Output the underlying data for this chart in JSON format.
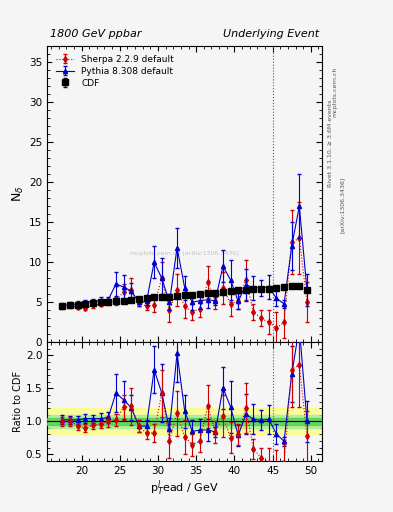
{
  "title_left": "1800 GeV ppbar",
  "title_right": "Underlying Event",
  "ylabel_main": "N$_{\\delta}$",
  "ylabel_ratio": "Ratio to CDF",
  "xlabel": "p$_T^{l}$ead / GeV",
  "right_label1": "Rivet 3.1.10, ≥ 3.6M events",
  "right_label2": "[arXiv:1306.3436]",
  "right_label3": "mcplots.cern.ch",
  "watermark": "mcplots.cern.ch [arXiv:1306.3436]",
  "xlim": [
    15.5,
    51.5
  ],
  "ylim_main": [
    0,
    37
  ],
  "ylim_ratio": [
    0.4,
    2.2
  ],
  "vline_x": 45.0,
  "cdf_x": [
    17.5,
    18.5,
    19.5,
    20.5,
    21.5,
    22.5,
    23.5,
    24.5,
    25.5,
    26.5,
    27.5,
    28.5,
    29.5,
    30.5,
    31.5,
    32.5,
    33.5,
    34.5,
    35.5,
    36.5,
    37.5,
    38.5,
    39.5,
    40.5,
    41.5,
    42.5,
    43.5,
    44.5,
    45.5,
    46.5,
    47.5,
    48.5,
    49.5
  ],
  "cdf_y": [
    4.5,
    4.6,
    4.7,
    4.8,
    4.9,
    5.0,
    5.0,
    5.1,
    5.2,
    5.3,
    5.4,
    5.5,
    5.6,
    5.6,
    5.7,
    5.8,
    5.9,
    5.9,
    6.0,
    6.1,
    6.2,
    6.3,
    6.4,
    6.5,
    6.5,
    6.6,
    6.7,
    6.7,
    6.8,
    6.9,
    7.0,
    7.0,
    6.5
  ],
  "cdf_yerr": [
    0.2,
    0.2,
    0.2,
    0.2,
    0.2,
    0.2,
    0.2,
    0.2,
    0.2,
    0.2,
    0.2,
    0.2,
    0.2,
    0.2,
    0.2,
    0.2,
    0.2,
    0.2,
    0.2,
    0.2,
    0.2,
    0.2,
    0.2,
    0.2,
    0.2,
    0.2,
    0.2,
    0.2,
    0.2,
    0.2,
    0.2,
    0.2,
    0.2
  ],
  "pythia_x": [
    17.5,
    18.5,
    19.5,
    20.5,
    21.5,
    22.5,
    23.5,
    24.5,
    25.5,
    26.5,
    27.5,
    28.5,
    29.5,
    30.5,
    31.5,
    32.5,
    33.5,
    34.5,
    35.5,
    36.5,
    37.5,
    38.5,
    39.5,
    40.5,
    41.5,
    42.5,
    43.5,
    44.5,
    45.5,
    46.5,
    47.5,
    48.5,
    49.5
  ],
  "pythia_y": [
    4.6,
    4.7,
    4.8,
    5.0,
    5.1,
    5.2,
    5.3,
    7.3,
    6.9,
    6.4,
    5.0,
    5.1,
    10.0,
    8.0,
    5.0,
    11.8,
    6.8,
    5.0,
    5.2,
    5.3,
    5.2,
    9.5,
    7.8,
    5.1,
    7.2,
    6.8,
    6.8,
    6.9,
    5.5,
    4.8,
    12.0,
    17.0,
    6.5
  ],
  "pythia_yerr": [
    0.3,
    0.3,
    0.3,
    0.3,
    0.3,
    0.4,
    0.4,
    1.5,
    1.5,
    1.0,
    0.5,
    0.5,
    2.0,
    2.5,
    1.0,
    2.5,
    1.5,
    1.0,
    1.0,
    1.0,
    0.5,
    2.0,
    2.5,
    1.0,
    2.0,
    1.5,
    1.0,
    1.5,
    1.0,
    0.5,
    3.0,
    4.0,
    2.0
  ],
  "sherpa_x": [
    17.5,
    18.5,
    19.5,
    20.5,
    21.5,
    22.5,
    23.5,
    24.5,
    25.5,
    26.5,
    27.5,
    28.5,
    29.5,
    30.5,
    31.5,
    32.5,
    33.5,
    34.5,
    35.5,
    36.5,
    37.5,
    38.5,
    39.5,
    40.5,
    41.5,
    42.5,
    43.5,
    44.5,
    45.5,
    46.5,
    47.5,
    48.5,
    49.5
  ],
  "sherpa_y": [
    4.5,
    4.6,
    4.4,
    4.3,
    4.6,
    4.8,
    5.0,
    5.2,
    6.3,
    6.5,
    5.0,
    4.5,
    4.6,
    8.0,
    4.0,
    6.5,
    4.5,
    3.8,
    4.2,
    7.5,
    5.2,
    6.8,
    4.8,
    5.2,
    7.8,
    3.8,
    3.0,
    2.5,
    1.8,
    2.5,
    12.5,
    13.0,
    5.0
  ],
  "sherpa_yerr": [
    0.3,
    0.3,
    0.3,
    0.3,
    0.3,
    0.3,
    0.4,
    0.5,
    1.0,
    1.5,
    0.5,
    0.5,
    0.8,
    2.0,
    1.5,
    2.0,
    1.5,
    1.0,
    1.0,
    2.0,
    1.0,
    2.0,
    1.5,
    1.0,
    2.5,
    1.0,
    1.0,
    1.5,
    2.0,
    2.0,
    4.0,
    4.5,
    2.5
  ],
  "cdf_color": "#000000",
  "pythia_color": "#0000cc",
  "sherpa_color": "#cc0000",
  "vline_color": "#555555",
  "green_band_inner": 0.05,
  "green_band_outer": 0.1,
  "yellow_band_outer": 0.2,
  "bg_color": "#f5f5f5"
}
